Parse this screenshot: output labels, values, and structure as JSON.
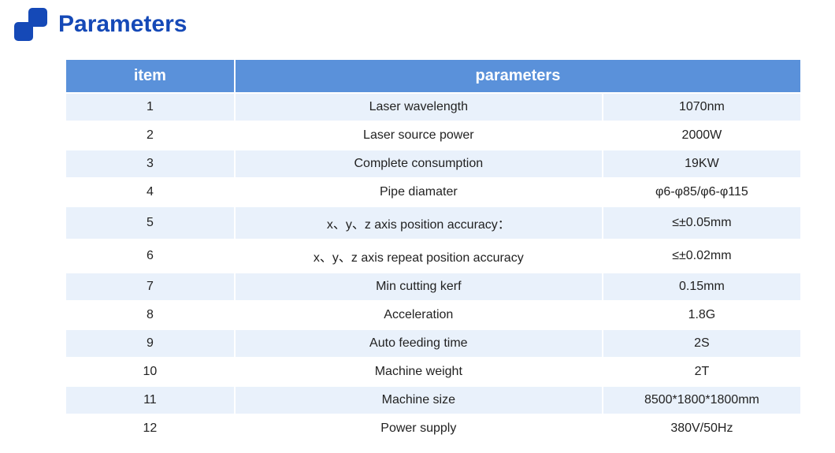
{
  "header": {
    "title": "Parameters",
    "title_color": "#1549b7",
    "logo_color": "#1549b7"
  },
  "table": {
    "columns": [
      "item",
      "parameters"
    ],
    "header_bg": "#5a91da",
    "header_text_color": "#ffffff",
    "row_odd_bg": "#e9f1fb",
    "row_even_bg": "#ffffff",
    "text_color": "#222222",
    "rows": [
      {
        "n": "1",
        "param": "Laser wavelength",
        "value": "1070nm"
      },
      {
        "n": "2",
        "param": "Laser source power",
        "value": "2000W"
      },
      {
        "n": "3",
        "param": "Complete consumption",
        "value": "19KW"
      },
      {
        "n": "4",
        "param": "Pipe diamater",
        "value": "φ6-φ85/φ6-φ115"
      },
      {
        "n": "5",
        "param": "x、y、z axis position accuracy：",
        "value": "≤±0.05mm"
      },
      {
        "n": "6",
        "param": "x、y、z axis repeat position accuracy",
        "value": "≤±0.02mm"
      },
      {
        "n": "7",
        "param": "Min cutting kerf",
        "value": "0.15mm"
      },
      {
        "n": "8",
        "param": "Acceleration",
        "value": "1.8G"
      },
      {
        "n": "9",
        "param": "Auto feeding time",
        "value": "2S"
      },
      {
        "n": "10",
        "param": "Machine weight",
        "value": "2T"
      },
      {
        "n": "11",
        "param": "Machine size",
        "value": "8500*1800*1800mm"
      },
      {
        "n": "12",
        "param": "Power supply",
        "value": "380V/50Hz"
      }
    ]
  }
}
